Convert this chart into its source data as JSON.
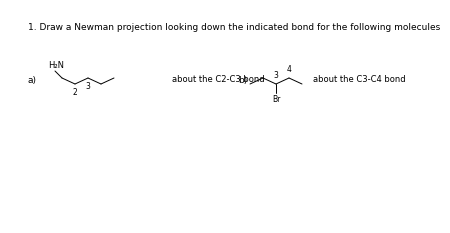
{
  "title": "1. Draw a Newman projection looking down the indicated bond for the following molecules",
  "title_fontsize": 6.5,
  "bg_color": "#ffffff",
  "label_a": "a)",
  "label_b": "b)",
  "text_about_a": "about the C2-C3 bond",
  "text_about_b": "about the C3-C4 bond",
  "label_h2n": "H₂N",
  "label_br": "Br",
  "num_2": "2",
  "num_3a": "3",
  "num_3b": "3",
  "num_4": "4",
  "line_color": "#000000",
  "font_color": "#000000",
  "small_fontsize": 5.5,
  "label_fontsize": 6.5,
  "about_fontsize": 6.0,
  "h2n_fontsize": 6.0
}
